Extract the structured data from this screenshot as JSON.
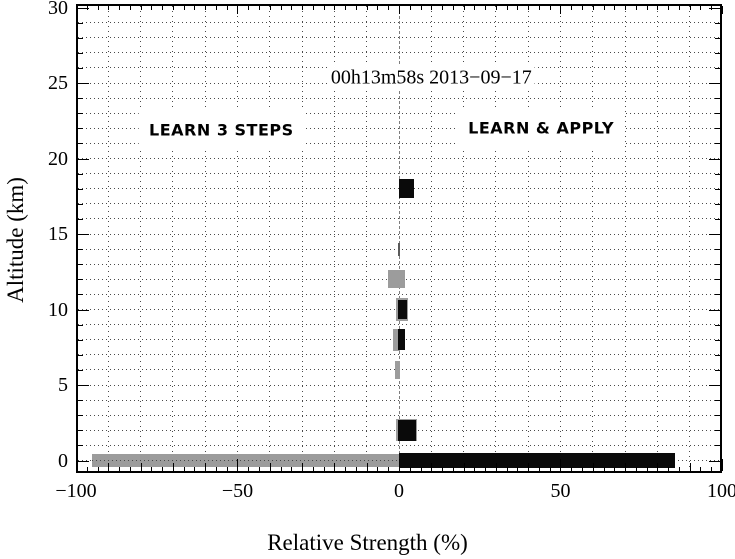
{
  "figure": {
    "background": "#ffffff",
    "frame_color": "#000000",
    "grid_color": "#4a4a4a",
    "zero_line_color": "#7d7d7d",
    "bar_gray": "#9c9c9c",
    "bar_black": "#0a0a0a"
  },
  "chart_data": {
    "type": "bar",
    "orientation": "horizontal",
    "title": "00h13m58s 2013−09−17",
    "xlabel": "Relative Strength (%)",
    "ylabel": "Altitude (km)",
    "xlim": [
      -100,
      100
    ],
    "ylim": [
      -0.75,
      30
    ],
    "xticks": [
      -100,
      -50,
      0,
      50,
      100
    ],
    "xtick_labels": [
      "−100",
      "−50",
      "0",
      "50",
      "100"
    ],
    "yticks": [
      0,
      5,
      10,
      15,
      20,
      25,
      30
    ],
    "ytick_labels": [
      "0",
      "5",
      "10",
      "15",
      "20",
      "25",
      "30"
    ],
    "grid": {
      "style": "dotted",
      "x_step": 10,
      "y_step": 1
    },
    "x_minor_tick_step": 3.3333,
    "y_minor_tick_step": 1,
    "legend": "none",
    "zero_reference_line": {
      "x": 0,
      "style": "dashed",
      "color": "#7d7d7d"
    },
    "annotations": [
      {
        "text": "00h13m58s 2013−09−17",
        "x": 10,
        "y": 25.3,
        "style": "serif",
        "boxed": false
      },
      {
        "text": "LEARN 3 STEPS",
        "x": -55,
        "y": 21.9,
        "style": "bold-sans",
        "boxed": true
      },
      {
        "text": "LEARN & APPLY",
        "x": 44,
        "y": 22.0,
        "style": "bold-sans",
        "boxed": true
      }
    ],
    "marks": [
      {
        "altitude_km": 0,
        "from_pct": -95.0,
        "to_pct": 0.0,
        "half_height_km": 0.45,
        "color": "#9c9c9c"
      },
      {
        "altitude_km": 0,
        "from_pct": 0.0,
        "to_pct": 85.5,
        "half_height_km": 0.47,
        "color": "#0a0a0a"
      },
      {
        "altitude_km": 2,
        "from_pct": -0.9,
        "to_pct": 5.5,
        "half_height_km": 0.73,
        "color": "#9c9c9c"
      },
      {
        "altitude_km": 2,
        "from_pct": -0.4,
        "to_pct": 5.3,
        "half_height_km": 0.68,
        "color": "#0a0a0a"
      },
      {
        "altitude_km": 6,
        "from_pct": -1.2,
        "to_pct": 0.2,
        "half_height_km": 0.62,
        "color": "#9c9c9c"
      },
      {
        "altitude_km": 8,
        "from_pct": -2.0,
        "to_pct": 0.2,
        "half_height_km": 0.72,
        "color": "#9c9c9c"
      },
      {
        "altitude_km": 8,
        "from_pct": -0.2,
        "to_pct": 1.9,
        "half_height_km": 0.7,
        "color": "#0a0a0a"
      },
      {
        "altitude_km": 10,
        "from_pct": -0.9,
        "to_pct": 2.7,
        "half_height_km": 0.73,
        "color": "#9c9c9c"
      },
      {
        "altitude_km": 10,
        "from_pct": -0.4,
        "to_pct": 2.4,
        "half_height_km": 0.66,
        "color": "#0a0a0a"
      },
      {
        "altitude_km": 12,
        "from_pct": -3.4,
        "to_pct": 1.9,
        "half_height_km": 0.6,
        "color": "#9c9c9c"
      },
      {
        "altitude_km": 14,
        "from_pct": -0.4,
        "to_pct": 0.4,
        "half_height_km": 0.43,
        "color": "#5a5a5a"
      },
      {
        "altitude_km": 18,
        "from_pct": 0.0,
        "to_pct": 4.6,
        "half_height_km": 0.63,
        "color": "#0a0a0a"
      }
    ],
    "gridline_overlay_on_gray_bar": {
      "altitude_km": 0,
      "from_pct": -95,
      "to_pct": 0
    }
  }
}
